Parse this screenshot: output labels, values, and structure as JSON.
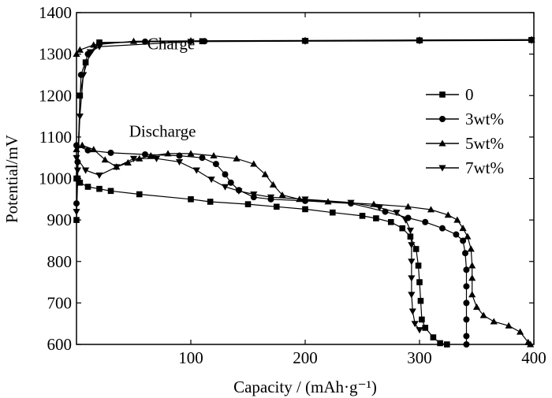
{
  "chart_data": {
    "type": "line",
    "xlabel": "Capacity / (mAh·g⁻¹)",
    "ylabel": "Potential/mV",
    "xlim": [
      0,
      400
    ],
    "ylim": [
      600,
      1400
    ],
    "xticks": [
      100,
      200,
      300,
      400
    ],
    "yticks": [
      600,
      700,
      800,
      900,
      1000,
      1100,
      1200,
      1300,
      1400
    ],
    "grid": false,
    "legend_position": "right",
    "annotations": [
      {
        "text": "Charge",
        "x": 62,
        "y": 1312
      },
      {
        "text": "Discharge",
        "x": 46,
        "y": 1101
      }
    ],
    "series": [
      {
        "name": "0",
        "marker": "square",
        "charge": [
          [
            0,
            900
          ],
          [
            1,
            1000
          ],
          [
            3,
            1200
          ],
          [
            8,
            1280
          ],
          [
            20,
            1328
          ],
          [
            110,
            1331
          ],
          [
            200,
            1332
          ],
          [
            300,
            1333
          ],
          [
            398,
            1334
          ]
        ],
        "discharge": [
          [
            0,
            1000
          ],
          [
            3,
            990
          ],
          [
            10,
            980
          ],
          [
            20,
            975
          ],
          [
            30,
            970
          ],
          [
            55,
            962
          ],
          [
            100,
            950
          ],
          [
            117,
            944
          ],
          [
            150,
            938
          ],
          [
            175,
            932
          ],
          [
            200,
            926
          ],
          [
            224,
            918
          ],
          [
            250,
            910
          ],
          [
            262,
            904
          ],
          [
            275,
            895
          ],
          [
            285,
            880
          ],
          [
            292,
            860
          ],
          [
            297,
            830
          ],
          [
            299,
            790
          ],
          [
            300,
            750
          ],
          [
            301,
            705
          ],
          [
            302,
            660
          ],
          [
            305,
            640
          ],
          [
            312,
            617
          ],
          [
            318,
            603
          ],
          [
            324,
            600
          ]
        ]
      },
      {
        "name": "3wt%",
        "marker": "circle",
        "charge": [
          [
            0,
            940
          ],
          [
            1,
            1040
          ],
          [
            4,
            1250
          ],
          [
            10,
            1300
          ],
          [
            20,
            1326
          ],
          [
            60,
            1330
          ],
          [
            112,
            1331
          ],
          [
            200,
            1332
          ],
          [
            300,
            1333
          ],
          [
            398,
            1334
          ]
        ],
        "discharge": [
          [
            0,
            1080
          ],
          [
            10,
            1068
          ],
          [
            30,
            1062
          ],
          [
            60,
            1058
          ],
          [
            90,
            1055
          ],
          [
            110,
            1050
          ],
          [
            122,
            1035
          ],
          [
            130,
            1010
          ],
          [
            135,
            990
          ],
          [
            142,
            972
          ],
          [
            155,
            955
          ],
          [
            170,
            950
          ],
          [
            200,
            946
          ],
          [
            240,
            940
          ],
          [
            270,
            920
          ],
          [
            290,
            905
          ],
          [
            305,
            895
          ],
          [
            320,
            880
          ],
          [
            332,
            865
          ],
          [
            338,
            850
          ],
          [
            340,
            820
          ],
          [
            341,
            780
          ],
          [
            341,
            740
          ],
          [
            341,
            700
          ],
          [
            341,
            660
          ],
          [
            341,
            620
          ],
          [
            341,
            600
          ]
        ]
      },
      {
        "name": "5wt%",
        "marker": "triangle-up",
        "charge": [
          [
            0,
            1300
          ],
          [
            3,
            1310
          ],
          [
            15,
            1322
          ],
          [
            50,
            1331
          ],
          [
            100,
            1332
          ],
          [
            200,
            1333
          ],
          [
            300,
            1334
          ],
          [
            398,
            1335
          ]
        ],
        "discharge": [
          [
            0,
            1070
          ],
          [
            5,
            1080
          ],
          [
            15,
            1070
          ],
          [
            25,
            1045
          ],
          [
            35,
            1028
          ],
          [
            45,
            1038
          ],
          [
            55,
            1048
          ],
          [
            65,
            1055
          ],
          [
            80,
            1060
          ],
          [
            100,
            1060
          ],
          [
            120,
            1055
          ],
          [
            140,
            1048
          ],
          [
            155,
            1035
          ],
          [
            165,
            1010
          ],
          [
            172,
            985
          ],
          [
            180,
            960
          ],
          [
            195,
            950
          ],
          [
            220,
            944
          ],
          [
            260,
            938
          ],
          [
            290,
            932
          ],
          [
            310,
            925
          ],
          [
            325,
            912
          ],
          [
            333,
            900
          ],
          [
            338,
            880
          ],
          [
            342,
            860
          ],
          [
            345,
            830
          ],
          [
            346,
            790
          ],
          [
            346,
            760
          ],
          [
            346,
            720
          ],
          [
            350,
            690
          ],
          [
            356,
            670
          ],
          [
            365,
            655
          ],
          [
            378,
            645
          ],
          [
            388,
            630
          ],
          [
            395,
            605
          ],
          [
            397,
            600
          ]
        ]
      },
      {
        "name": "7wt%",
        "marker": "triangle-down",
        "charge": [
          [
            0,
            920
          ],
          [
            1,
            1020
          ],
          [
            3,
            1150
          ],
          [
            6,
            1250
          ],
          [
            12,
            1305
          ],
          [
            20,
            1318
          ],
          [
            100,
            1330
          ],
          [
            200,
            1331
          ],
          [
            300,
            1332
          ],
          [
            398,
            1333
          ]
        ],
        "discharge": [
          [
            0,
            1050
          ],
          [
            8,
            1020
          ],
          [
            20,
            1008
          ],
          [
            35,
            1028
          ],
          [
            50,
            1048
          ],
          [
            70,
            1048
          ],
          [
            90,
            1040
          ],
          [
            105,
            1020
          ],
          [
            118,
            998
          ],
          [
            130,
            980
          ],
          [
            142,
            970
          ],
          [
            155,
            962
          ],
          [
            170,
            955
          ],
          [
            200,
            950
          ],
          [
            240,
            942
          ],
          [
            265,
            930
          ],
          [
            280,
            918
          ],
          [
            288,
            900
          ],
          [
            292,
            875
          ],
          [
            293,
            840
          ],
          [
            293,
            800
          ],
          [
            293,
            760
          ],
          [
            293,
            720
          ],
          [
            294,
            680
          ],
          [
            296,
            650
          ],
          [
            300,
            635
          ]
        ]
      }
    ]
  }
}
